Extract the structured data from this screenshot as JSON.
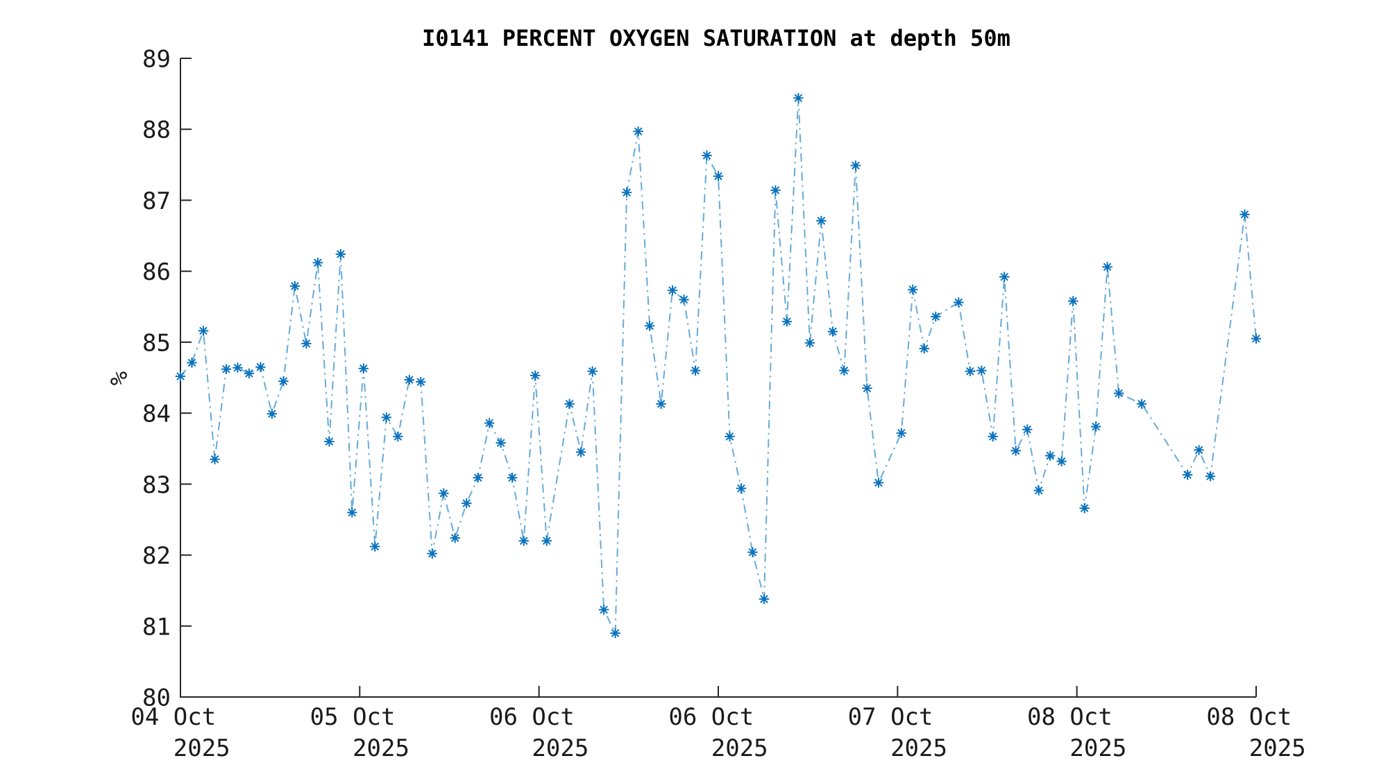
{
  "chart_data": {
    "type": "line",
    "title": "I0141 PERCENT OXYGEN SATURATION at depth 50m",
    "ylabel": "%",
    "ylim": [
      80,
      89
    ],
    "yticks": [
      80,
      81,
      82,
      83,
      84,
      85,
      86,
      87,
      88,
      89
    ],
    "xticks": [
      {
        "month_day": "04 Oct",
        "year": "2025"
      },
      {
        "month_day": "05 Oct",
        "year": "2025"
      },
      {
        "month_day": "06 Oct",
        "year": "2025"
      },
      {
        "month_day": "06 Oct",
        "year": "2025"
      },
      {
        "month_day": "07 Oct",
        "year": "2025"
      },
      {
        "month_day": "08 Oct",
        "year": "2025"
      },
      {
        "month_day": "08 Oct",
        "year": "2025"
      }
    ],
    "line_style": "dash-dot",
    "marker": "asterisk",
    "line_color": "#66AAD8",
    "marker_color": "#0A72BD",
    "axis_color": "#262626",
    "x_slot_max": 94,
    "points": [
      [
        0,
        84.52
      ],
      [
        1,
        84.71
      ],
      [
        2,
        85.16
      ],
      [
        3,
        83.35
      ],
      [
        4,
        84.62
      ],
      [
        5,
        84.64
      ],
      [
        6,
        84.56
      ],
      [
        7,
        84.65
      ],
      [
        8,
        83.99
      ],
      [
        9,
        84.45
      ],
      [
        10,
        85.79
      ],
      [
        11,
        84.98
      ],
      [
        12,
        86.12
      ],
      [
        13,
        83.6
      ],
      [
        14,
        86.24
      ],
      [
        15,
        82.6
      ],
      [
        16,
        84.63
      ],
      [
        17,
        82.12
      ],
      [
        18,
        83.94
      ],
      [
        19,
        83.67
      ],
      [
        20,
        84.47
      ],
      [
        21,
        84.44
      ],
      [
        22,
        82.02
      ],
      [
        23,
        82.87
      ],
      [
        24,
        82.24
      ],
      [
        25,
        82.73
      ],
      [
        26,
        83.09
      ],
      [
        27,
        83.86
      ],
      [
        28,
        83.58
      ],
      [
        29,
        83.09
      ],
      [
        30,
        82.2
      ],
      [
        31,
        84.53
      ],
      [
        32,
        82.2
      ],
      [
        34,
        84.13
      ],
      [
        35,
        83.45
      ],
      [
        36,
        84.59
      ],
      [
        37,
        81.23
      ],
      [
        38,
        80.9
      ],
      [
        39,
        87.11
      ],
      [
        40,
        87.97
      ],
      [
        41,
        85.23
      ],
      [
        42,
        84.13
      ],
      [
        43,
        85.73
      ],
      [
        44,
        85.6
      ],
      [
        45,
        84.6
      ],
      [
        46,
        87.63
      ],
      [
        47,
        87.34
      ],
      [
        48,
        83.67
      ],
      [
        49,
        82.94
      ],
      [
        50,
        82.04
      ],
      [
        51,
        81.38
      ],
      [
        52,
        87.14
      ],
      [
        53,
        85.29
      ],
      [
        54,
        88.44
      ],
      [
        55,
        84.99
      ],
      [
        56,
        86.71
      ],
      [
        57,
        85.15
      ],
      [
        58,
        84.6
      ],
      [
        59,
        87.49
      ],
      [
        60,
        84.35
      ],
      [
        61,
        83.02
      ],
      [
        63,
        83.72
      ],
      [
        64,
        85.74
      ],
      [
        65,
        84.91
      ],
      [
        66,
        85.36
      ],
      [
        68,
        85.56
      ],
      [
        69,
        84.59
      ],
      [
        70,
        84.6
      ],
      [
        71,
        83.67
      ],
      [
        72,
        85.92
      ],
      [
        73,
        83.47
      ],
      [
        74,
        83.77
      ],
      [
        75,
        82.91
      ],
      [
        76,
        83.4
      ],
      [
        77,
        83.32
      ],
      [
        78,
        85.58
      ],
      [
        79,
        82.66
      ],
      [
        80,
        83.81
      ],
      [
        81,
        86.06
      ],
      [
        82,
        84.28
      ],
      [
        84,
        84.13
      ],
      [
        88,
        83.13
      ],
      [
        89,
        83.48
      ],
      [
        90,
        83.11
      ],
      [
        93,
        86.8
      ],
      [
        94,
        85.05
      ]
    ]
  }
}
